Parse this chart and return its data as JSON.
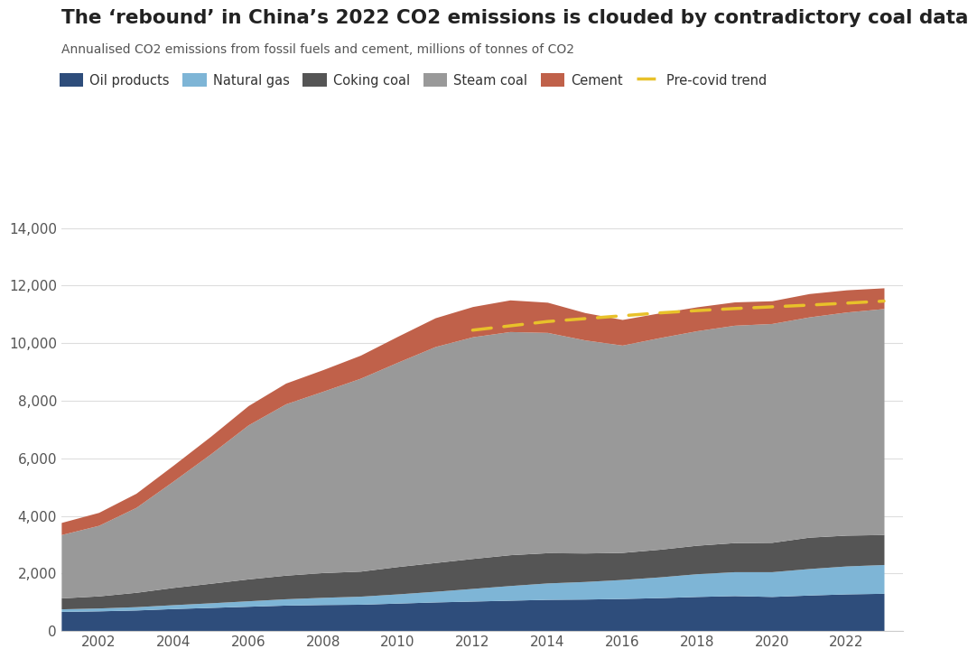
{
  "title": "The ‘rebound’ in China’s 2022 CO2 emissions is clouded by contradictory coal data",
  "subtitle": "Annualised CO2 emissions from fossil fuels and cement, millions of tonnes of CO2",
  "years": [
    2001,
    2002,
    2003,
    2004,
    2005,
    2006,
    2007,
    2008,
    2009,
    2010,
    2011,
    2012,
    2013,
    2014,
    2015,
    2016,
    2017,
    2018,
    2019,
    2020,
    2021,
    2022,
    2023
  ],
  "oil_products": [
    680,
    700,
    730,
    780,
    820,
    860,
    900,
    920,
    930,
    970,
    1010,
    1040,
    1070,
    1100,
    1110,
    1130,
    1160,
    1200,
    1230,
    1200,
    1250,
    1290,
    1310
  ],
  "natural_gas": [
    90,
    100,
    115,
    135,
    160,
    190,
    220,
    250,
    280,
    320,
    370,
    440,
    510,
    570,
    610,
    660,
    720,
    790,
    830,
    860,
    920,
    970,
    1000
  ],
  "coking_coal": [
    380,
    420,
    500,
    600,
    680,
    760,
    820,
    860,
    870,
    950,
    1000,
    1040,
    1070,
    1050,
    990,
    940,
    960,
    990,
    1010,
    1020,
    1090,
    1070,
    1040
  ],
  "steam_coal": [
    2200,
    2450,
    2950,
    3700,
    4500,
    5350,
    5950,
    6300,
    6700,
    7100,
    7500,
    7700,
    7750,
    7650,
    7400,
    7200,
    7350,
    7450,
    7550,
    7600,
    7650,
    7750,
    7850
  ],
  "cement": [
    420,
    450,
    490,
    550,
    610,
    670,
    720,
    750,
    800,
    900,
    1000,
    1050,
    1100,
    1050,
    950,
    890,
    860,
    830,
    810,
    790,
    810,
    770,
    720
  ],
  "pre_covid_trend_years": [
    2012,
    2013,
    2014,
    2015,
    2016,
    2017,
    2018,
    2019,
    2020,
    2021,
    2022,
    2023
  ],
  "pre_covid_trend_values": [
    10450,
    10600,
    10750,
    10850,
    10950,
    11050,
    11130,
    11200,
    11260,
    11320,
    11390,
    11460
  ],
  "colors": {
    "oil_products": "#2e4d7b",
    "natural_gas": "#7eb5d6",
    "coking_coal": "#555555",
    "steam_coal": "#999999",
    "cement": "#c0614a",
    "pre_covid_trend": "#e8c12a"
  },
  "ylim": [
    0,
    14000
  ],
  "yticks": [
    0,
    2000,
    4000,
    6000,
    8000,
    10000,
    12000,
    14000
  ],
  "xticks": [
    2002,
    2004,
    2006,
    2008,
    2010,
    2012,
    2014,
    2016,
    2018,
    2020,
    2022
  ],
  "xlim_start": 2001.0,
  "xlim_end": 2023.5,
  "background_color": "#ffffff"
}
